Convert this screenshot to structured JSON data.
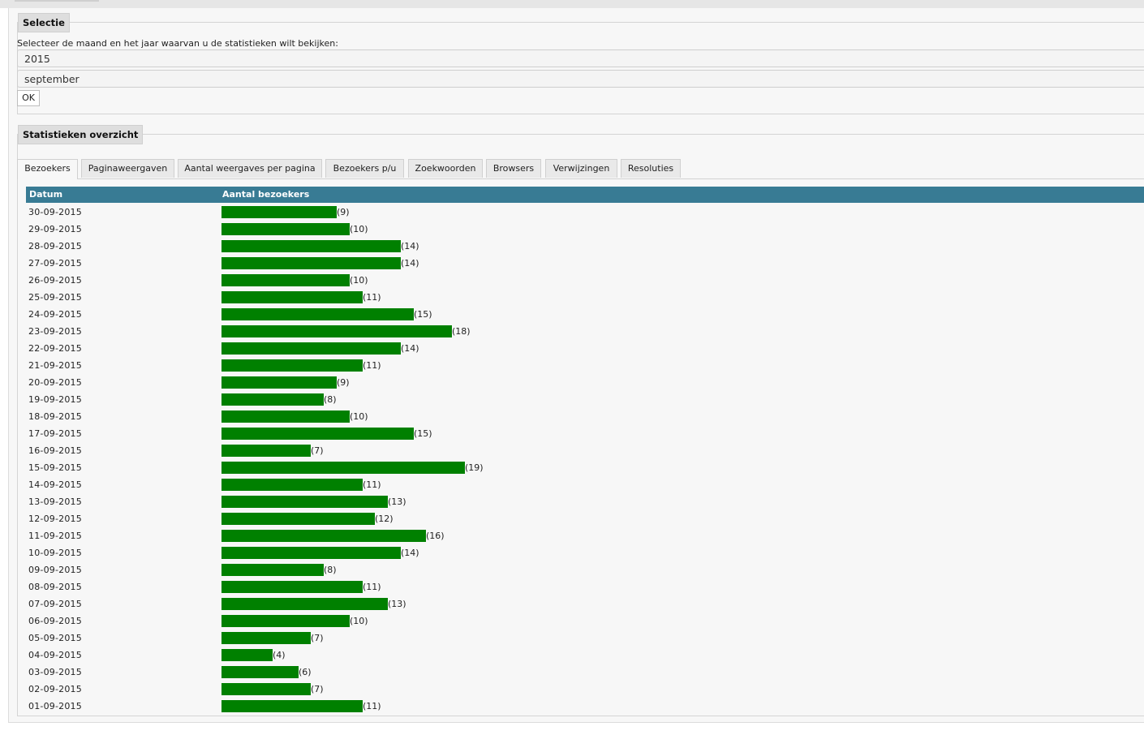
{
  "selection": {
    "legend": "Selectie",
    "instruction": "Selecteer de maand en het jaar waarvan u de statistieken wilt bekijken:",
    "year": "2015",
    "month": "september",
    "ok_label": "OK"
  },
  "overview": {
    "legend": "Statistieken overzicht",
    "tabs": [
      {
        "label": "Bezoekers",
        "active": true
      },
      {
        "label": "Paginaweergaven",
        "active": false
      },
      {
        "label": "Aantal weergaves per pagina",
        "active": false
      },
      {
        "label": "Bezoekers p/u",
        "active": false
      },
      {
        "label": "Zoekwoorden",
        "active": false
      },
      {
        "label": "Browsers",
        "active": false
      },
      {
        "label": "Verwijzingen",
        "active": false
      },
      {
        "label": "Resoluties",
        "active": false
      }
    ],
    "columns": {
      "date": "Datum",
      "count": "Aantal bezoekers"
    },
    "bar_color": "#008000",
    "header_color": "#387b94"
  },
  "chart_data": {
    "type": "bar",
    "categories": [
      "30-09-2015",
      "29-09-2015",
      "28-09-2015",
      "27-09-2015",
      "26-09-2015",
      "25-09-2015",
      "24-09-2015",
      "23-09-2015",
      "22-09-2015",
      "21-09-2015",
      "20-09-2015",
      "19-09-2015",
      "18-09-2015",
      "17-09-2015",
      "16-09-2015",
      "15-09-2015",
      "14-09-2015",
      "13-09-2015",
      "12-09-2015",
      "11-09-2015",
      "10-09-2015",
      "09-09-2015",
      "08-09-2015",
      "07-09-2015",
      "06-09-2015",
      "05-09-2015",
      "04-09-2015",
      "03-09-2015",
      "02-09-2015",
      "01-09-2015"
    ],
    "values": [
      9,
      10,
      14,
      14,
      10,
      11,
      15,
      18,
      14,
      11,
      9,
      8,
      10,
      15,
      7,
      19,
      11,
      13,
      12,
      16,
      14,
      8,
      11,
      13,
      10,
      7,
      4,
      6,
      7,
      11
    ],
    "value_labels": [
      "(9)",
      "(10)",
      "(14)",
      "(14)",
      "(10)",
      "(11)",
      "(15)",
      "(18)",
      "(14)",
      "(11)",
      "(9)",
      "(8)",
      "(10)",
      "(15)",
      "(7)",
      "(19)",
      "(11)",
      "(13)",
      "(12)",
      "(16)",
      "(14)",
      "(8)",
      "(11)",
      "(13)",
      "(10)",
      "(7)",
      "(4)",
      "(6)",
      "(7)",
      "(11)"
    ],
    "xlabel": "Aantal bezoekers",
    "ylabel": "Datum",
    "orientation": "horizontal"
  }
}
